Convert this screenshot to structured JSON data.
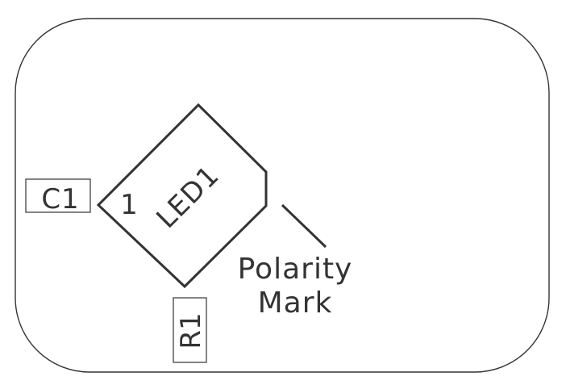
{
  "board": {
    "outline_color": "#333333",
    "background": "#ffffff"
  },
  "components": {
    "c1": {
      "designator": "C1"
    },
    "r1": {
      "designator": "R1"
    },
    "led1": {
      "designator": "LED1",
      "pin1_label": "1"
    }
  },
  "annotation": {
    "line1": "Polarity",
    "line2": "Mark"
  }
}
